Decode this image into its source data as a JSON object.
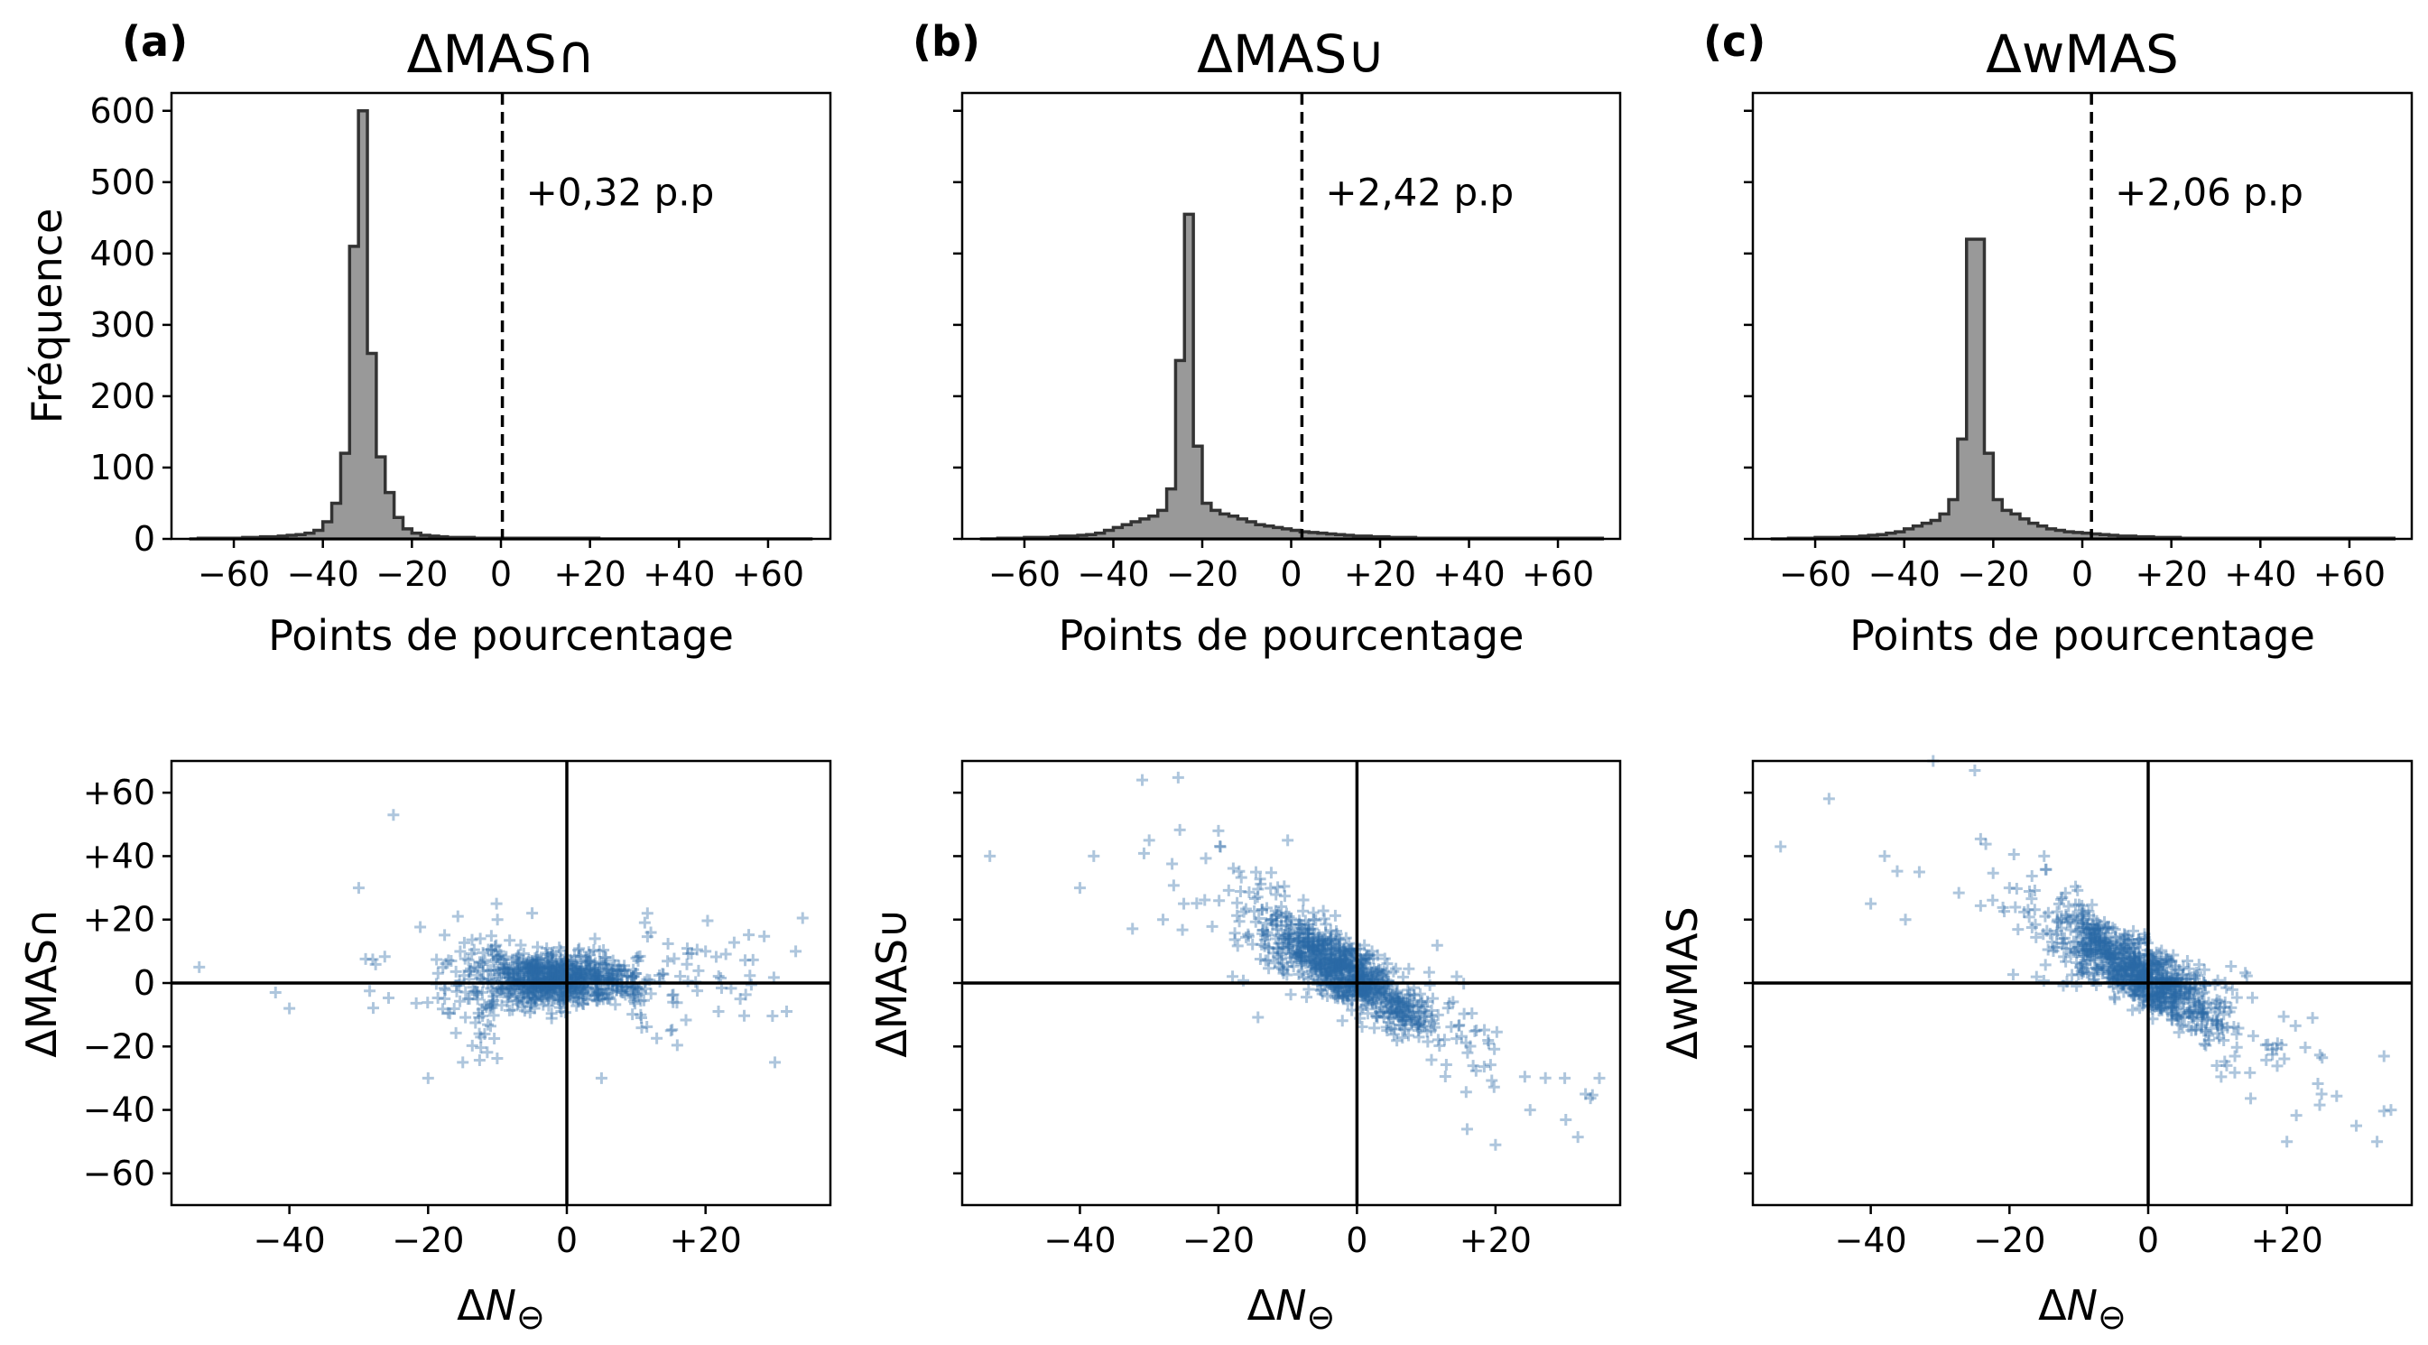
{
  "chart_data": [
    {
      "type": "bar",
      "panel": "(a)",
      "title": "ΔMAS∩",
      "xlabel": "Points de pourcentage",
      "ylabel": "Fréquence",
      "xlim": [
        -74,
        74
      ],
      "ylim": [
        0,
        625
      ],
      "xticks": [
        -60,
        -40,
        -20,
        0,
        20,
        40,
        60
      ],
      "xtick_labels": [
        "−60",
        "−40",
        "−20",
        "0",
        "+20",
        "+40",
        "+60"
      ],
      "yticks": [
        0,
        100,
        200,
        300,
        400,
        500,
        600
      ],
      "ytick_labels": [
        "0",
        "100",
        "200",
        "300",
        "400",
        "500",
        "600"
      ],
      "bin_width": 2,
      "bin_start": -70,
      "counts": [
        0,
        1,
        1,
        1,
        1,
        1,
        2,
        2,
        3,
        3,
        4,
        5,
        6,
        8,
        12,
        24,
        50,
        120,
        410,
        600,
        260,
        115,
        65,
        30,
        14,
        8,
        5,
        4,
        3,
        2,
        2,
        2,
        1,
        1,
        1,
        1,
        1,
        1,
        1,
        1,
        1,
        1,
        1,
        1,
        1,
        1,
        0,
        0,
        0,
        0,
        0,
        0,
        0,
        0,
        0,
        0,
        0,
        0,
        0,
        0,
        0,
        0,
        0,
        0,
        0,
        0,
        0,
        0,
        0,
        0
      ],
      "mean_line": 0.32,
      "annotation": "+0,32 p.p"
    },
    {
      "type": "bar",
      "panel": "(b)",
      "title": "ΔMAS∪",
      "xlabel": "Points de pourcentage",
      "xlim": [
        -74,
        74
      ],
      "ylim": [
        0,
        625
      ],
      "xticks": [
        -60,
        -40,
        -20,
        0,
        20,
        40,
        60
      ],
      "xtick_labels": [
        "−60",
        "−40",
        "−20",
        "0",
        "+20",
        "+40",
        "+60"
      ],
      "bin_width": 2,
      "bin_start": -70,
      "counts": [
        0,
        0,
        1,
        1,
        1,
        2,
        2,
        2,
        3,
        4,
        4,
        5,
        6,
        8,
        12,
        16,
        20,
        24,
        28,
        32,
        40,
        70,
        250,
        455,
        130,
        50,
        40,
        35,
        32,
        28,
        24,
        20,
        18,
        16,
        14,
        12,
        10,
        9,
        8,
        7,
        6,
        5,
        4,
        4,
        3,
        3,
        2,
        2,
        2,
        1,
        1,
        1,
        1,
        1,
        1,
        1,
        1,
        1,
        1,
        1,
        1,
        1,
        1,
        1,
        1,
        1,
        1,
        1,
        1,
        1
      ],
      "mean_line": 2.42,
      "annotation": "+2,42 p.p"
    },
    {
      "type": "bar",
      "panel": "(c)",
      "title": "ΔwMAS",
      "xlabel": "Points de pourcentage",
      "xlim": [
        -74,
        74
      ],
      "ylim": [
        0,
        625
      ],
      "xticks": [
        -60,
        -40,
        -20,
        0,
        20,
        40,
        60
      ],
      "xtick_labels": [
        "−60",
        "−40",
        "−20",
        "0",
        "+20",
        "+40",
        "+60"
      ],
      "bin_width": 2,
      "bin_start": -70,
      "counts": [
        0,
        0,
        1,
        1,
        1,
        2,
        2,
        2,
        3,
        3,
        4,
        5,
        6,
        8,
        10,
        14,
        18,
        22,
        26,
        35,
        55,
        140,
        420,
        420,
        120,
        55,
        40,
        35,
        28,
        22,
        18,
        14,
        12,
        10,
        9,
        8,
        7,
        6,
        5,
        4,
        4,
        3,
        3,
        2,
        2,
        2,
        1,
        1,
        1,
        1,
        1,
        1,
        1,
        1,
        1,
        1,
        1,
        1,
        1,
        1,
        1,
        1,
        1,
        1,
        1,
        1,
        1,
        1,
        1,
        1
      ],
      "mean_line": 2.06,
      "annotation": "+2,06 p.p"
    },
    {
      "type": "scatter",
      "panel": "(a)",
      "xlabel": "ΔN⊖",
      "ylabel": "ΔMAS∩",
      "xlim": [
        -57,
        38
      ],
      "ylim": [
        -70,
        70
      ],
      "xticks": [
        -40,
        -20,
        0,
        20
      ],
      "xtick_labels": [
        "−40",
        "−20",
        "0",
        "+20"
      ],
      "yticks": [
        -60,
        -40,
        -20,
        0,
        20,
        40,
        60
      ],
      "ytick_labels": [
        "−60",
        "−40",
        "−20",
        "0",
        "+20",
        "+40",
        "+60"
      ],
      "marker": "+",
      "color": "#2b6aa6",
      "trend": {
        "slope": -0.05,
        "intercept": 1.0,
        "spread_core": 4,
        "spread_tail": 10
      },
      "outliers": [
        [
          -53,
          5
        ],
        [
          -25,
          53
        ],
        [
          -30,
          30
        ],
        [
          -20,
          -30
        ],
        [
          -10,
          20
        ],
        [
          -5,
          22
        ],
        [
          5,
          -30
        ],
        [
          30,
          -25
        ],
        [
          33,
          10
        ],
        [
          25,
          -5
        ],
        [
          -40,
          -8
        ],
        [
          -42,
          -3
        ],
        [
          15,
          -15
        ],
        [
          20,
          10
        ],
        [
          -15,
          -25
        ]
      ]
    },
    {
      "type": "scatter",
      "panel": "(b)",
      "xlabel": "ΔN⊖",
      "ylabel": "ΔMAS∪",
      "xlim": [
        -57,
        38
      ],
      "ylim": [
        -70,
        70
      ],
      "xticks": [
        -40,
        -20,
        0,
        20
      ],
      "xtick_labels": [
        "−40",
        "−20",
        "0",
        "+20"
      ],
      "yticks": [
        -60,
        -40,
        -20,
        0,
        20,
        40,
        60
      ],
      "marker": "+",
      "color": "#2b6aa6",
      "trend": {
        "slope": -1.3,
        "intercept": 1.5,
        "spread_core": 5,
        "spread_tail": 9
      },
      "outliers": [
        [
          -53,
          40
        ],
        [
          -31,
          64
        ],
        [
          -40,
          30
        ],
        [
          -38,
          40
        ],
        [
          -30,
          45
        ],
        [
          -25,
          25
        ],
        [
          -28,
          20
        ],
        [
          20,
          -51
        ],
        [
          33,
          -35
        ],
        [
          30,
          -30
        ],
        [
          35,
          -30
        ],
        [
          -20,
          48
        ],
        [
          -10,
          45
        ],
        [
          25,
          -40
        ]
      ]
    },
    {
      "type": "scatter",
      "panel": "(c)",
      "xlabel": "ΔN⊖",
      "ylabel": "ΔwMAS",
      "xlim": [
        -57,
        38
      ],
      "ylim": [
        -70,
        70
      ],
      "xticks": [
        -40,
        -20,
        0,
        20
      ],
      "xtick_labels": [
        "−40",
        "−20",
        "0",
        "+20"
      ],
      "yticks": [
        -60,
        -40,
        -20,
        0,
        20,
        40,
        60
      ],
      "marker": "+",
      "color": "#2b6aa6",
      "trend": {
        "slope": -1.2,
        "intercept": 1.5,
        "spread_core": 5,
        "spread_tail": 10
      },
      "outliers": [
        [
          -53,
          43
        ],
        [
          -31,
          70
        ],
        [
          -25,
          67
        ],
        [
          -40,
          25
        ],
        [
          -38,
          40
        ],
        [
          -33,
          35
        ],
        [
          -20,
          30
        ],
        [
          -15,
          40
        ],
        [
          20,
          -50
        ],
        [
          33,
          -50
        ],
        [
          35,
          -40
        ],
        [
          30,
          -45
        ],
        [
          25,
          -35
        ],
        [
          -35,
          20
        ]
      ]
    }
  ],
  "panel_labels": [
    "(a)",
    "(b)",
    "(c)"
  ]
}
